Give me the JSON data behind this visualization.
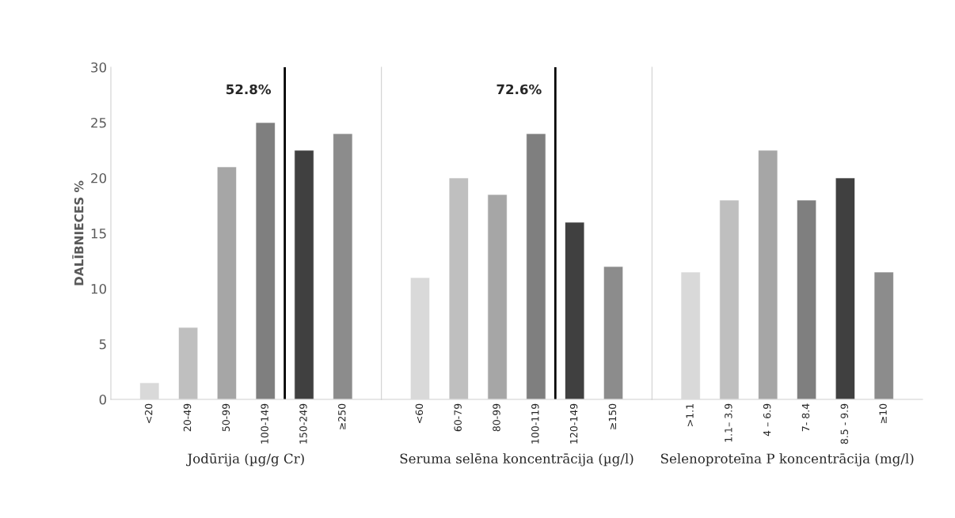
{
  "chart_data": [
    {
      "type": "bar",
      "ylabel": "DALĪBNIECES %",
      "xlabel": "Jodūrija (µg/g Cr)",
      "categories": [
        "<20",
        "20-49",
        "50-99",
        "100-149",
        "150-249",
        "≥250"
      ],
      "values": [
        1.5,
        6.5,
        21,
        25,
        22.5,
        24
      ],
      "colors": [
        "#d9d9d9",
        "#bfbfbf",
        "#a6a6a6",
        "#7f7f7f",
        "#404040",
        "#8c8c8c"
      ],
      "ylim": [
        0,
        30
      ],
      "yticks": [
        0,
        5,
        10,
        15,
        20,
        25,
        30
      ],
      "grid": false,
      "annotations": [
        "52.8%"
      ]
    },
    {
      "type": "bar",
      "xlabel": "Seruma selēna koncentrācija (µg/l)",
      "categories": [
        "<60",
        "60-79",
        "80-99",
        "100-119",
        "120-149",
        "≥150"
      ],
      "values": [
        11,
        20,
        18.5,
        24,
        16,
        12
      ],
      "colors": [
        "#d9d9d9",
        "#bfbfbf",
        "#a6a6a6",
        "#7f7f7f",
        "#404040",
        "#8c8c8c"
      ],
      "ylim": [
        0,
        30
      ],
      "tick_labels": "x",
      "grid": false,
      "annotations": [
        "72.6%"
      ]
    },
    {
      "type": "bar",
      "xlabel": "Selenoproteīna P koncentrācija (mg/l)",
      "categories": [
        ">1.1",
        "1.1– 3.9",
        "4 – 6.9",
        "7- 8.4",
        "8.5 - 9.9",
        "≥10"
      ],
      "values": [
        11.5,
        18,
        22.5,
        18,
        20,
        11.5
      ],
      "colors": [
        "#d9d9d9",
        "#bfbfbf",
        "#a6a6a6",
        "#7f7f7f",
        "#404040",
        "#8c8c8c"
      ],
      "ylim": [
        0,
        30
      ],
      "tick_labels": "x",
      "grid": false
    }
  ]
}
